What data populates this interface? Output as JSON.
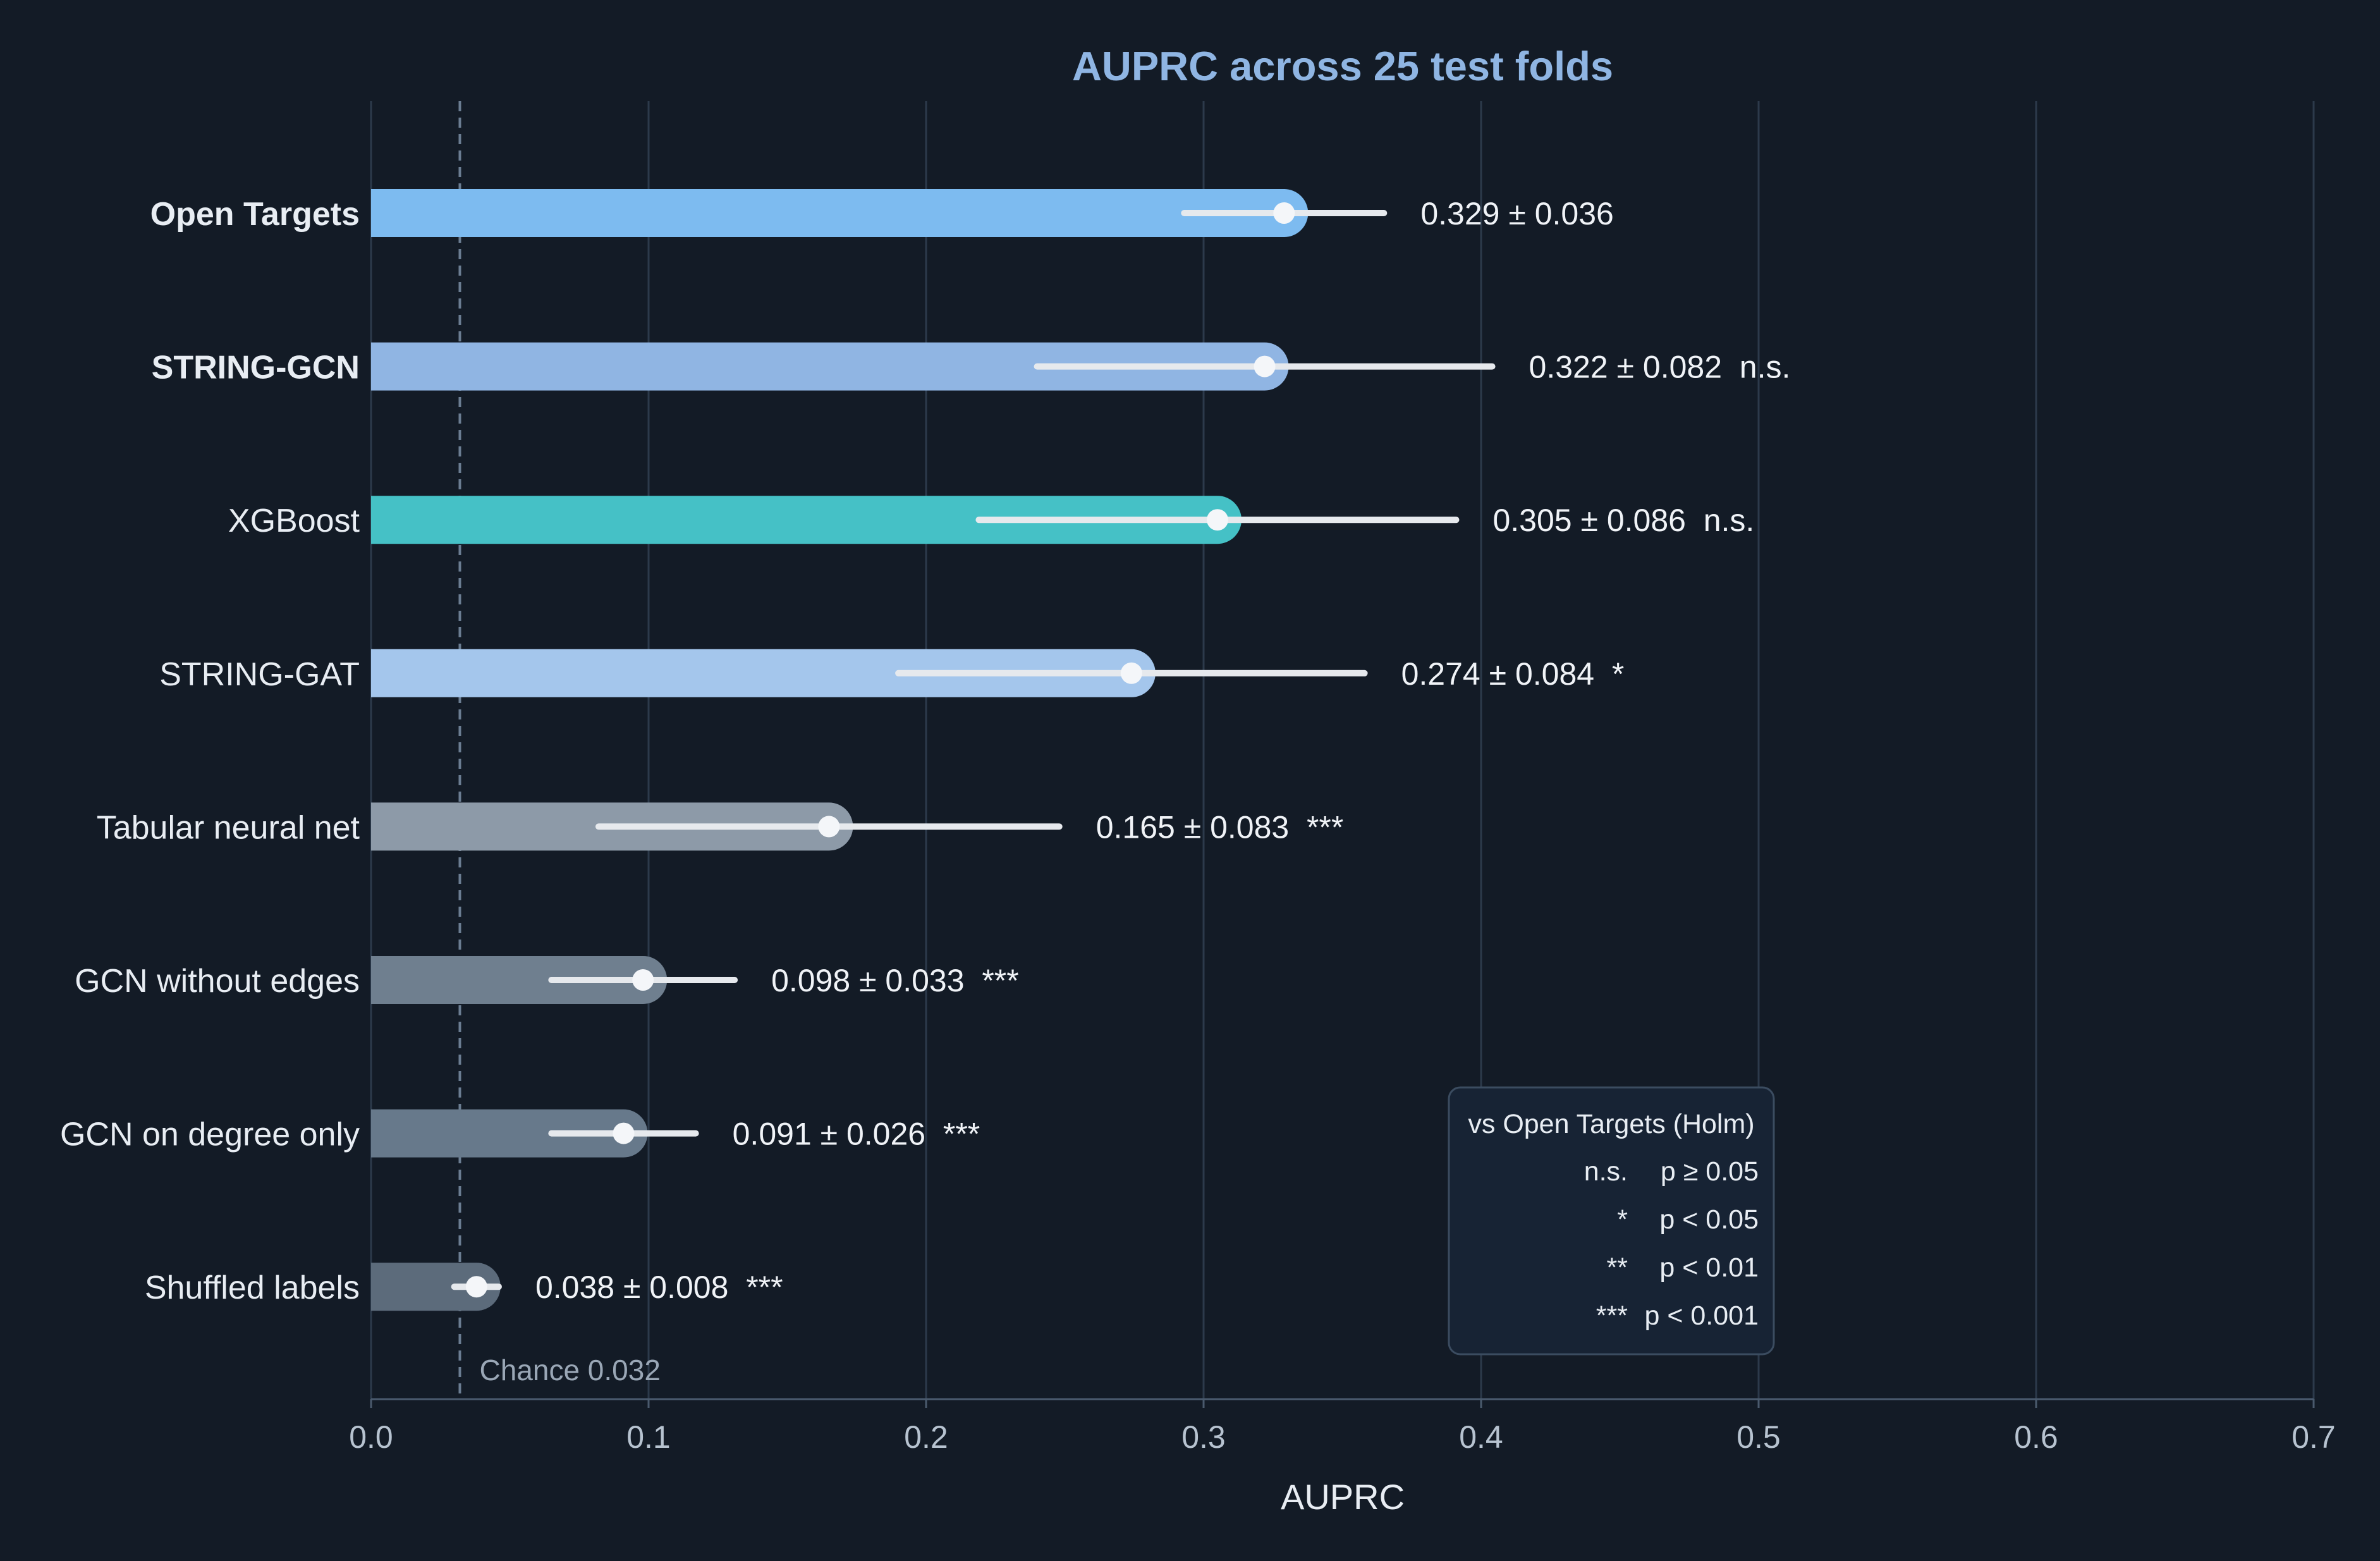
{
  "chart_data": {
    "type": "bar",
    "orientation": "horizontal",
    "title": "AUPRC across 25 test folds",
    "xlabel": "AUPRC",
    "ylabel": "",
    "xlim": [
      0,
      0.7
    ],
    "xticks": [
      0.0,
      0.1,
      0.2,
      0.3,
      0.4,
      0.5,
      0.6,
      0.7
    ],
    "xtick_labels": [
      "0.0",
      "0.1",
      "0.2",
      "0.3",
      "0.4",
      "0.5",
      "0.6",
      "0.7"
    ],
    "grid": "vertical",
    "categories": [
      "Open Targets",
      "STRING-GCN",
      "XGBoost",
      "STRING-GAT",
      "Tabular neural net",
      "GCN without edges",
      "GCN on degree only",
      "Shuffled labels"
    ],
    "values": [
      0.329,
      0.322,
      0.305,
      0.274,
      0.165,
      0.098,
      0.091,
      0.038
    ],
    "errors": [
      0.036,
      0.082,
      0.086,
      0.084,
      0.083,
      0.033,
      0.026,
      0.008
    ],
    "value_labels": [
      "0.329 ± 0.036",
      "0.322 ± 0.082",
      "0.305 ± 0.086",
      "0.274 ± 0.084",
      "0.165 ± 0.083",
      "0.098 ± 0.033",
      "0.091 ± 0.026",
      "0.038 ± 0.008"
    ],
    "significance": [
      "",
      "n.s.",
      "n.s.",
      "*",
      "***",
      "***",
      "***",
      "***"
    ],
    "highlighted": [
      true,
      true,
      false,
      false,
      false,
      false,
      false,
      false
    ],
    "bar_colors": [
      "#7dbbf0",
      "#90b5e3",
      "#45c1c6",
      "#a4c6ec",
      "#8d9aa8",
      "#6f7f8f",
      "#67798b",
      "#5c6b7b"
    ],
    "reference_line": {
      "value": 0.032,
      "label": "Chance 0.032"
    },
    "legend": {
      "placement": "bottom-right",
      "title": "vs Open Targets (Holm)",
      "entries": [
        {
          "symbol": "n.s.",
          "text": "p ≥ 0.05"
        },
        {
          "symbol": "*",
          "text": "p < 0.05"
        },
        {
          "symbol": "**",
          "text": "p < 0.01"
        },
        {
          "symbol": "***",
          "text": "p < 0.001"
        }
      ]
    }
  },
  "colors": {
    "background": "#131b26",
    "title": "#8fb5e3",
    "highlight_label": "#7dbbf0",
    "grid": "#2c3a4b",
    "error_bar": "#e6e9ed",
    "marker": "#f4f6f9",
    "chance_line": "#6b7d92",
    "legend_bg": "#172334",
    "legend_border": "#3b4c60"
  }
}
